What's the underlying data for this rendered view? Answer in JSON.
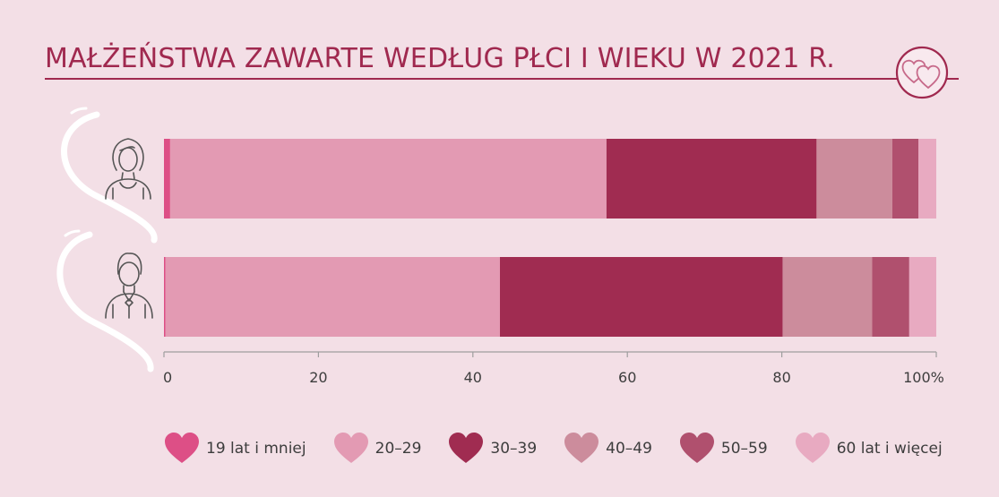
{
  "title": "MAŁŻEŃSTWA ZAWARTE WEDŁUG PŁCI I WIEKU W 2021 R.",
  "icons": {
    "title_emblem": "double-heart-icon",
    "woman": "woman-icon",
    "man": "man-icon"
  },
  "chart_data": {
    "type": "bar",
    "orientation": "horizontal",
    "stacked": true,
    "title": "MAŁŻEŃSTWA ZAWARTE WEDŁUG PŁCI I WIEKU W 2021 R.",
    "xlim": [
      0,
      100
    ],
    "x_ticks": [
      "0",
      "20",
      "40",
      "60",
      "80",
      "100%"
    ],
    "grid": false,
    "legend_position": "bottom",
    "categories": [
      "woman-icon",
      "man-icon"
    ],
    "series": [
      {
        "name": "19 lat i mniej",
        "color": "#dd4f86",
        "values": [
          0.8,
          0.2
        ]
      },
      {
        "name": "20–29",
        "color": "#e39ab3",
        "values": [
          56.5,
          43.3
        ]
      },
      {
        "name": "30–39",
        "color": "#a02c51",
        "values": [
          27.2,
          36.6
        ]
      },
      {
        "name": "40–49",
        "color": "#cc8c9c",
        "values": [
          9.8,
          11.6
        ]
      },
      {
        "name": "50–59",
        "color": "#b0506e",
        "values": [
          3.4,
          4.8
        ]
      },
      {
        "name": "60 lat i więcej",
        "color": "#e8aac1",
        "values": [
          2.3,
          3.5
        ]
      }
    ]
  }
}
